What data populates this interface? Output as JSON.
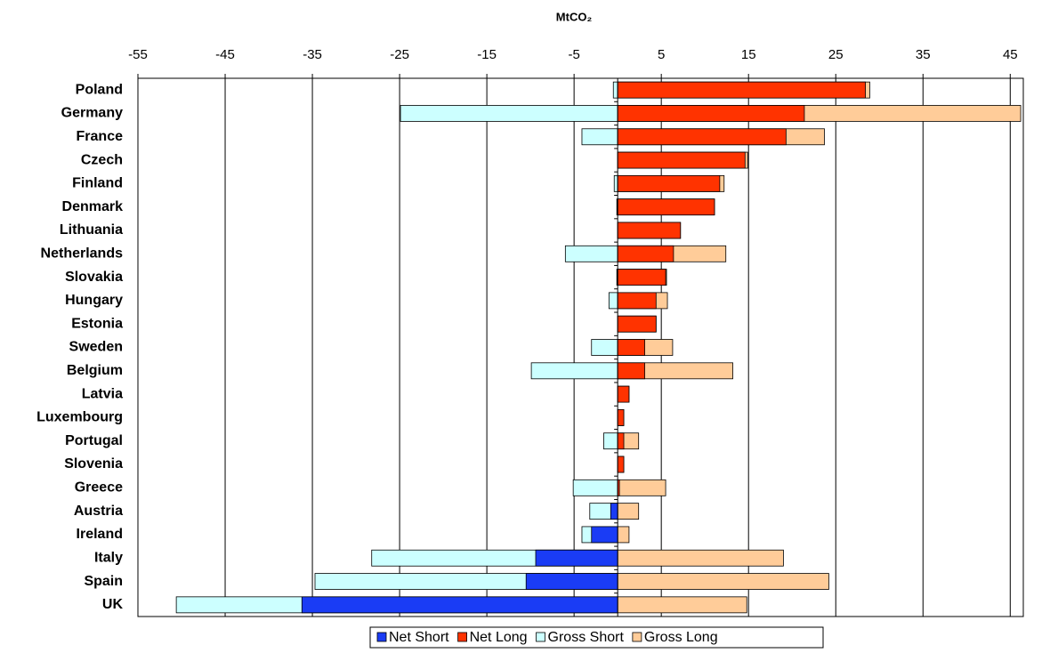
{
  "chart_data": {
    "type": "diverging-bar",
    "title": "MtCO₂",
    "categories": [
      "Poland",
      "Germany",
      "France",
      "Czech",
      "Finland",
      "Denmark",
      "Lithuania",
      "Netherlands",
      "Slovakia",
      "Hungary",
      "Estonia",
      "Sweden",
      "Belgium",
      "Latvia",
      "Luxembourg",
      "Portugal",
      "Slovenia",
      "Greece",
      "Austria",
      "Ireland",
      "Italy",
      "Spain",
      "UK"
    ],
    "series": [
      {
        "name": "Net Short",
        "color": "#1a3cf5",
        "values": [
          null,
          null,
          null,
          null,
          null,
          null,
          null,
          null,
          null,
          null,
          null,
          null,
          null,
          null,
          null,
          null,
          null,
          null,
          -0.8,
          -3.0,
          -9.4,
          -10.5,
          -36.2
        ]
      },
      {
        "name": "Net Long",
        "color": "#ff3300",
        "values": [
          28.4,
          21.4,
          19.3,
          14.6,
          11.7,
          11.1,
          7.2,
          6.4,
          5.5,
          4.4,
          4.4,
          3.1,
          3.1,
          1.3,
          0.7,
          0.7,
          0.7,
          0.2,
          null,
          null,
          null,
          null,
          null
        ]
      },
      {
        "name": "Gross Short",
        "color": "#ccffff",
        "values": [
          -0.5,
          -24.9,
          -4.1,
          null,
          -0.4,
          -0.1,
          null,
          -6.0,
          -0.1,
          -1.0,
          null,
          -3.0,
          -9.9,
          null,
          null,
          -1.6,
          null,
          -5.1,
          -3.2,
          -4.1,
          -28.2,
          -34.7,
          -50.6
        ]
      },
      {
        "name": "Gross Long",
        "color": "#ffcc99",
        "values": [
          28.9,
          46.2,
          23.7,
          14.9,
          12.2,
          11.1,
          7.2,
          12.4,
          5.6,
          5.7,
          4.4,
          6.3,
          13.2,
          1.3,
          0.7,
          2.4,
          0.7,
          5.5,
          2.4,
          1.3,
          19.0,
          24.2,
          14.8
        ]
      }
    ],
    "xlim": [
      -55,
      46.5
    ],
    "xticks": [
      -55,
      -45,
      -35,
      -25,
      -15,
      -5,
      5,
      15,
      25,
      35,
      45
    ],
    "grid": true,
    "legend": "bottom"
  }
}
